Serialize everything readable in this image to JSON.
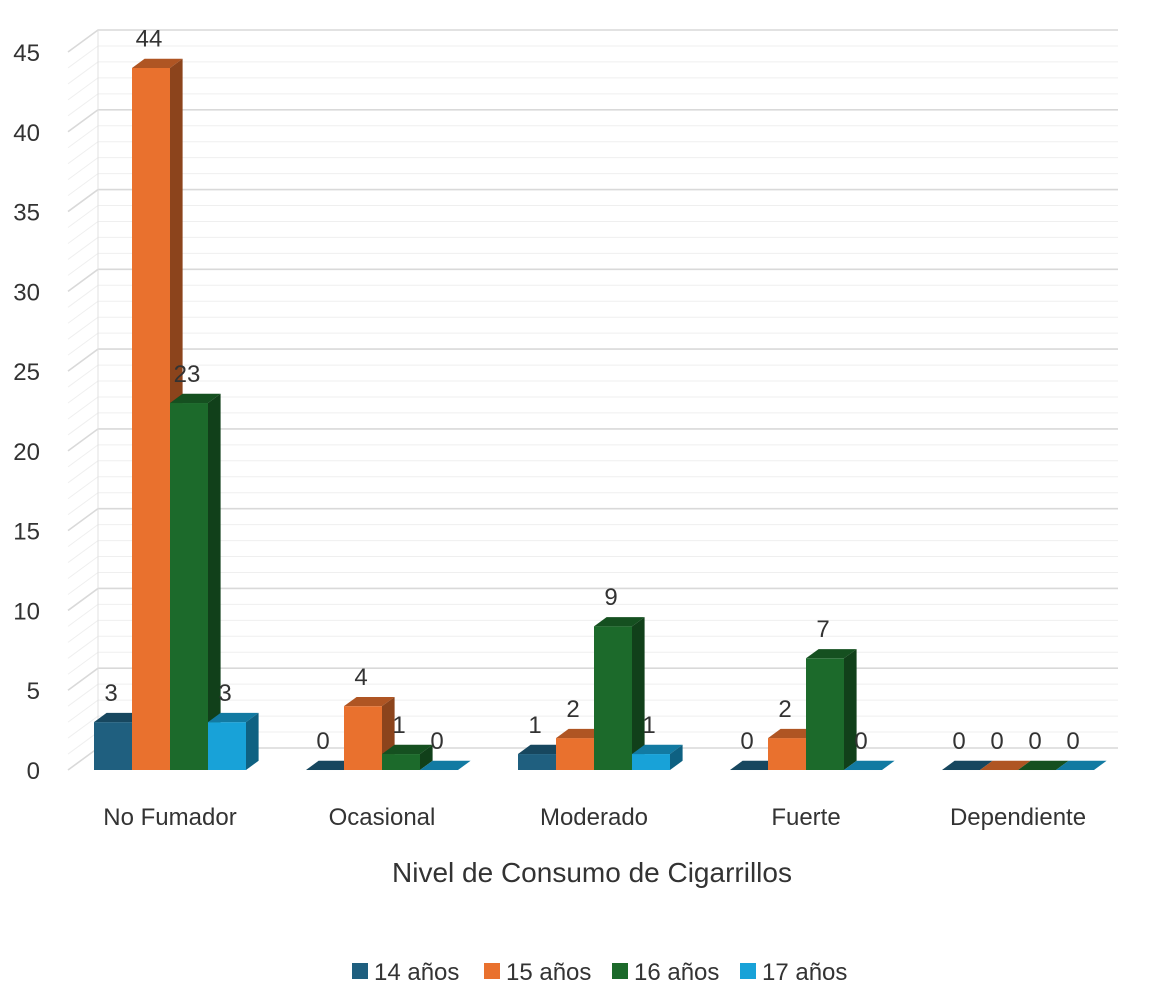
{
  "chart_data": {
    "type": "bar",
    "title": "",
    "xlabel": "Nivel de Consumo de Cigarrillos",
    "ylabel": "",
    "ylim": [
      0,
      45
    ],
    "yticks": [
      0,
      5,
      10,
      15,
      20,
      25,
      30,
      35,
      40,
      45
    ],
    "grid": true,
    "legend_position": "bottom",
    "categories": [
      "No Fumador",
      "Ocasional",
      "Moderado",
      "Fuerte",
      "Dependiente"
    ],
    "series": [
      {
        "name": "14 años",
        "color": "#1f5f7f",
        "values": [
          3,
          0,
          1,
          0,
          0
        ]
      },
      {
        "name": "15 años",
        "color": "#e9712e",
        "values": [
          44,
          4,
          2,
          2,
          0
        ]
      },
      {
        "name": "16 años",
        "color": "#1c6a2b",
        "values": [
          23,
          1,
          9,
          7,
          0
        ]
      },
      {
        "name": "17 años",
        "color": "#18a2d8",
        "values": [
          3,
          0,
          1,
          0,
          0
        ]
      }
    ],
    "style": "3d-clustered-column"
  }
}
